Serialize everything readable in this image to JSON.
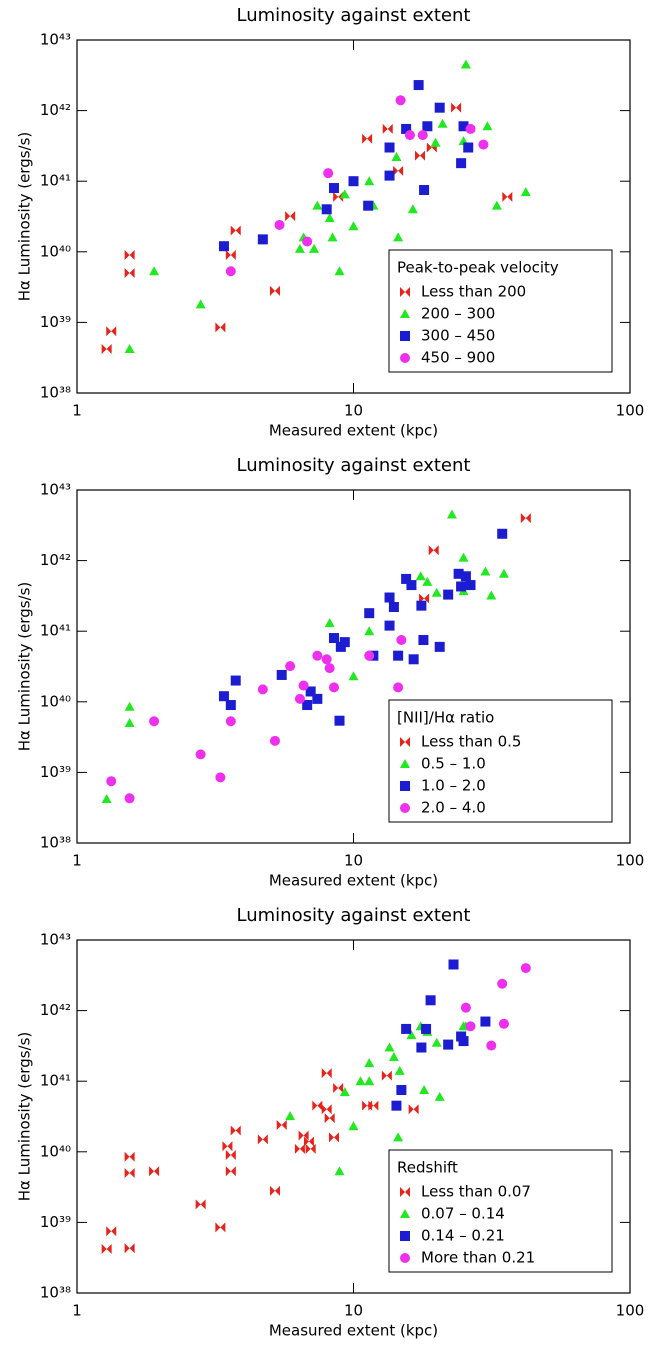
{
  "chart_data": [
    {
      "type": "scatter",
      "title": "Luminosity against extent",
      "xlabel": "Measured extent (kpc)",
      "ylabel": "Hα Luminosity (ergs/s)",
      "xlog": true,
      "ylog": true,
      "xlim": [
        1,
        100
      ],
      "ylim": [
        1e+38,
        1e+43
      ],
      "xticks": [
        1,
        10,
        100
      ],
      "yticks": [
        {
          "value": 1e+38,
          "label": "10³⁸"
        },
        {
          "value": 1e+39,
          "label": "10³⁹"
        },
        {
          "value": 1e+40,
          "label": "10⁴⁰"
        },
        {
          "value": 1e+41,
          "label": "10⁴¹"
        },
        {
          "value": 1e+42,
          "label": "10⁴²"
        },
        {
          "value": 1e+43,
          "label": "10⁴³"
        }
      ],
      "legend_title": "Peak-to-peak velocity",
      "legend": "lower right",
      "series": [
        {
          "name": "Less than 200",
          "color": "#e8231c",
          "marker": "bowtie",
          "x": [
            1.28,
            1.33,
            1.55,
            1.55,
            3.3,
            3.6,
            3.75,
            5.2,
            5.9,
            8.8,
            11.2,
            13.3,
            14.5,
            17.4,
            19.2,
            23.5,
            36
          ],
          "values": [
            4.2e+38,
            7.5e+38,
            5e+39,
            9e+39,
            8.5e+38,
            9e+39,
            2e+40,
            2.8e+39,
            3.2e+40,
            6e+40,
            4e+41,
            5.5e+41,
            1.4e+41,
            2.3e+41,
            3e+41,
            1.1e+42,
            6e+40
          ]
        },
        {
          "name": "200 – 300",
          "color": "#22e822",
          "marker": "triangle",
          "x": [
            1.55,
            1.9,
            2.8,
            6.4,
            6.6,
            7.2,
            7.4,
            8.2,
            8.4,
            8.9,
            9.3,
            10,
            11.4,
            11.8,
            14.3,
            14.5,
            16.4,
            19.8,
            21,
            25,
            25.5,
            30.5,
            33,
            42
          ],
          "values": [
            4.2e+38,
            5.3e+39,
            1.8e+39,
            1.1e+40,
            1.6e+40,
            1.1e+40,
            4.5e+40,
            3e+40,
            1.6e+40,
            5.3e+39,
            6.5e+40,
            2.3e+40,
            1e+41,
            4.5e+40,
            2.2e+41,
            1.6e+40,
            4e+40,
            3.5e+41,
            6.5e+41,
            3.7e+41,
            4.5e+42,
            6e+41,
            4.5e+40,
            7e+40
          ]
        },
        {
          "name": "300 – 450",
          "color": "#1c1cd0",
          "marker": "square",
          "x": [
            3.4,
            4.7,
            8,
            8.5,
            10,
            11.3,
            13.5,
            13.5,
            15.5,
            17.2,
            18,
            18.5,
            20.5,
            24.5,
            25,
            26
          ],
          "values": [
            1.2e+40,
            1.5e+40,
            4e+40,
            8e+40,
            1e+41,
            4.5e+40,
            3e+41,
            1.2e+41,
            5.5e+41,
            2.3e+42,
            7.5e+40,
            6e+41,
            1.1e+42,
            1.8e+41,
            6e+41,
            3e+41
          ]
        },
        {
          "name": "450 – 900",
          "color": "#ee30ee",
          "marker": "circle",
          "x": [
            3.6,
            5.4,
            6.8,
            8.1,
            14.8,
            16,
            17.8,
            26.5,
            29.5
          ],
          "values": [
            5.3e+39,
            2.4e+40,
            1.4e+40,
            1.3e+41,
            1.4e+42,
            4.5e+41,
            4.5e+41,
            5.5e+41,
            3.3e+41
          ]
        }
      ]
    },
    {
      "type": "scatter",
      "title": "Luminosity against extent",
      "xlabel": "Measured extent (kpc)",
      "ylabel": "Hα Luminosity (ergs/s)",
      "xlog": true,
      "ylog": true,
      "xlim": [
        1,
        100
      ],
      "ylim": [
        1e+38,
        1e+43
      ],
      "xticks": [
        1,
        10,
        100
      ],
      "yticks": [
        {
          "value": 1e+38,
          "label": "10³⁸"
        },
        {
          "value": 1e+39,
          "label": "10³⁹"
        },
        {
          "value": 1e+40,
          "label": "10⁴⁰"
        },
        {
          "value": 1e+41,
          "label": "10⁴¹"
        },
        {
          "value": 1e+42,
          "label": "10⁴²"
        },
        {
          "value": 1e+43,
          "label": "10⁴³"
        }
      ],
      "legend_title": "[NII]/Hα ratio",
      "legend": "lower right",
      "series": [
        {
          "name": "Less than 0.5",
          "color": "#e8231c",
          "marker": "bowtie",
          "x": [
            19.5,
            42,
            18
          ],
          "values": [
            1.4e+42,
            4e+42,
            2.9e+41
          ]
        },
        {
          "name": "0.5 – 1.0",
          "color": "#22e822",
          "marker": "triangle",
          "x": [
            1.55,
            1.55,
            1.28,
            8.2,
            11.4,
            10,
            20,
            22.7,
            25,
            25,
            30,
            31.5,
            35,
            17.5,
            18.5
          ],
          "values": [
            8.5e+39,
            5e+39,
            4.2e+38,
            1.3e+41,
            1e+41,
            2.3e+40,
            3.5e+41,
            4.5e+42,
            1.1e+42,
            3.7e+41,
            7e+41,
            3.2e+41,
            6.5e+41,
            6e+41,
            5e+41
          ]
        },
        {
          "name": "1.0 – 2.0",
          "color": "#1c1cd0",
          "marker": "square",
          "x": [
            3.4,
            3.6,
            3.75,
            5.5,
            6.8,
            7,
            7.4,
            8.5,
            9,
            9.3,
            8.9,
            11.4,
            11.8,
            13.5,
            13.5,
            14,
            14.5,
            15.5,
            16.2,
            17.6,
            17.9,
            16.5,
            20.5,
            22,
            24,
            24.5,
            25.5,
            26.5,
            34.5
          ],
          "values": [
            1.2e+40,
            9e+39,
            2e+40,
            2.4e+40,
            9e+39,
            1.4e+40,
            1.1e+40,
            8e+40,
            6e+40,
            7e+40,
            5.4e+39,
            1.8e+41,
            4.5e+40,
            3e+41,
            1.2e+41,
            2.2e+41,
            4.5e+40,
            5.5e+41,
            4.5e+41,
            2.3e+41,
            7.5e+40,
            4e+40,
            6e+40,
            3.3e+41,
            6.5e+41,
            4.3e+41,
            6e+41,
            4.5e+41,
            2.4e+42
          ]
        },
        {
          "name": "2.0 – 4.0",
          "color": "#ee30ee",
          "marker": "circle",
          "x": [
            1.33,
            1.55,
            1.9,
            2.8,
            3.3,
            3.6,
            4.7,
            5.2,
            5.9,
            6.4,
            6.6,
            7.4,
            8,
            8.2,
            8.5,
            11.4,
            14.5,
            14.9
          ],
          "values": [
            7.5e+38,
            4.3e+38,
            5.3e+39,
            1.8e+39,
            8.5e+38,
            5.3e+39,
            1.5e+40,
            2.8e+39,
            3.2e+40,
            1.1e+40,
            1.7e+40,
            4.5e+40,
            4e+40,
            3e+40,
            1.6e+40,
            4.5e+40,
            1.6e+40,
            7.5e+40
          ]
        }
      ]
    },
    {
      "type": "scatter",
      "title": "Luminosity against extent",
      "xlabel": "Measured extent (kpc)",
      "ylabel": "Hα Luminosity (ergs/s)",
      "xlog": true,
      "ylog": true,
      "xlim": [
        1,
        100
      ],
      "ylim": [
        1e+38,
        1e+43
      ],
      "xticks": [
        1,
        10,
        100
      ],
      "yticks": [
        {
          "value": 1e+38,
          "label": "10³⁸"
        },
        {
          "value": 1e+39,
          "label": "10³⁹"
        },
        {
          "value": 1e+40,
          "label": "10⁴⁰"
        },
        {
          "value": 1e+41,
          "label": "10⁴¹"
        },
        {
          "value": 1e+42,
          "label": "10⁴²"
        },
        {
          "value": 1e+43,
          "label": "10⁴³"
        }
      ],
      "legend_title": "Redshift",
      "legend": "lower right",
      "series": [
        {
          "name": "Less than 0.07",
          "color": "#e8231c",
          "marker": "bowtie",
          "x": [
            1.28,
            1.33,
            1.55,
            1.55,
            1.55,
            1.9,
            2.8,
            3.3,
            3.5,
            3.6,
            3.6,
            3.75,
            4.7,
            5.2,
            5.5,
            6.4,
            6.6,
            6.9,
            7,
            7.4,
            8,
            8,
            8.2,
            8.5,
            8.8,
            11.2,
            11.8,
            13.2,
            16.5
          ],
          "values": [
            4.2e+38,
            7.5e+38,
            8.5e+39,
            5e+39,
            4.3e+38,
            5.3e+39,
            1.8e+39,
            8.5e+38,
            1.2e+40,
            9e+39,
            5.3e+39,
            2e+40,
            1.5e+40,
            2.8e+39,
            2.4e+40,
            1.1e+40,
            1.7e+40,
            1.4e+40,
            1.1e+40,
            4.5e+40,
            1.3e+41,
            4e+40,
            3e+40,
            1.6e+40,
            8e+40,
            4.5e+40,
            4.5e+40,
            1.2e+41,
            4e+40
          ]
        },
        {
          "name": "0.07 – 0.14",
          "color": "#22e822",
          "marker": "triangle",
          "x": [
            5.9,
            8.9,
            9.3,
            10,
            10.6,
            11.4,
            11.4,
            13.5,
            14,
            14.5,
            14.7,
            16.2,
            17.5,
            18,
            18.5,
            20.5,
            20,
            25,
            25.5
          ],
          "values": [
            3.2e+40,
            5.3e+39,
            7e+40,
            2.3e+40,
            1e+41,
            1.8e+41,
            1e+41,
            3e+41,
            2.2e+41,
            1.6e+40,
            1.4e+41,
            4.5e+41,
            6e+41,
            7.5e+40,
            5e+41,
            6e+40,
            3.5e+41,
            6e+41,
            6e+41
          ]
        },
        {
          "name": "0.14 – 0.21",
          "color": "#1c1cd0",
          "marker": "square",
          "x": [
            14.3,
            14.9,
            15.5,
            17.6,
            18.3,
            19,
            22,
            23,
            24.5,
            25,
            30
          ],
          "values": [
            4.5e+40,
            7.5e+40,
            5.5e+41,
            3e+41,
            5.5e+41,
            1.4e+42,
            3.3e+41,
            4.5e+42,
            4.3e+41,
            3.7e+41,
            7e+41
          ]
        },
        {
          "name": "More than 0.21",
          "color": "#ee30ee",
          "marker": "circle",
          "x": [
            25.5,
            26.5,
            31.5,
            34.5,
            35,
            42
          ],
          "values": [
            1.1e+42,
            6e+41,
            3.2e+41,
            2.4e+42,
            6.5e+41,
            4e+42
          ]
        }
      ]
    }
  ]
}
